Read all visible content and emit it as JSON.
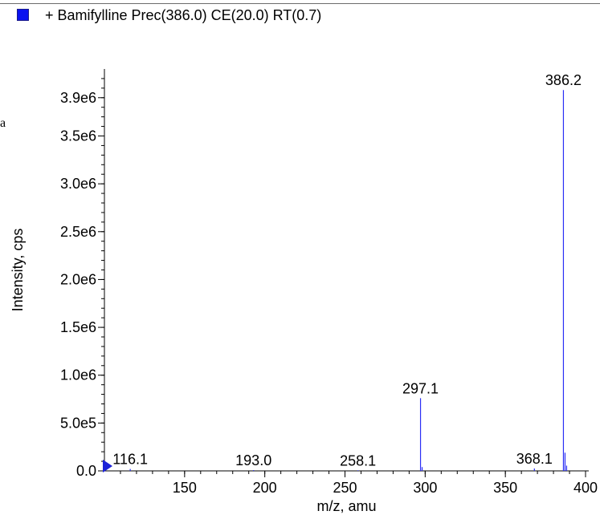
{
  "legend": {
    "label": "+ Bamifylline Prec(386.0) CE(20.0) RT(0.7)",
    "swatch_color": "#0a12f0"
  },
  "side_glyph": "a",
  "chart_data": {
    "type": "bar",
    "title": "",
    "xlabel": "m/z, amu",
    "ylabel": "Intensity, cps",
    "xlim": [
      100,
      402
    ],
    "ylim": [
      0,
      4200000
    ],
    "x_ticks": [
      150,
      200,
      250,
      300,
      350,
      400
    ],
    "y_ticks": [
      {
        "value": 0,
        "label": "0.0"
      },
      {
        "value": 500000,
        "label": "5.0e5"
      },
      {
        "value": 1000000,
        "label": "1.0e6"
      },
      {
        "value": 1500000,
        "label": "1.5e6"
      },
      {
        "value": 2000000,
        "label": "2.0e6"
      },
      {
        "value": 2500000,
        "label": "2.5e6"
      },
      {
        "value": 3000000,
        "label": "3.0e6"
      },
      {
        "value": 3500000,
        "label": "3.5e6"
      },
      {
        "value": 3900000,
        "label": "3.9e6"
      }
    ],
    "series_color": "#2a2ef5",
    "peaks": [
      {
        "mz": 116.1,
        "intensity": 20000
      },
      {
        "mz": 193.0,
        "intensity": 8000
      },
      {
        "mz": 258.1,
        "intensity": 6000
      },
      {
        "mz": 297.1,
        "intensity": 760000
      },
      {
        "mz": 298.1,
        "intensity": 40000
      },
      {
        "mz": 368.1,
        "intensity": 25000
      },
      {
        "mz": 386.2,
        "intensity": 3980000
      },
      {
        "mz": 387.2,
        "intensity": 190000
      },
      {
        "mz": 388.2,
        "intensity": 55000
      }
    ],
    "annotations": [
      {
        "mz": 116.1,
        "text": "116.1"
      },
      {
        "mz": 193.0,
        "text": "193.0"
      },
      {
        "mz": 258.1,
        "text": "258.1"
      },
      {
        "mz": 297.1,
        "text": "297.1"
      },
      {
        "mz": 368.1,
        "text": "368.1"
      },
      {
        "mz": 386.2,
        "text": "386.2"
      }
    ],
    "grid": false
  }
}
